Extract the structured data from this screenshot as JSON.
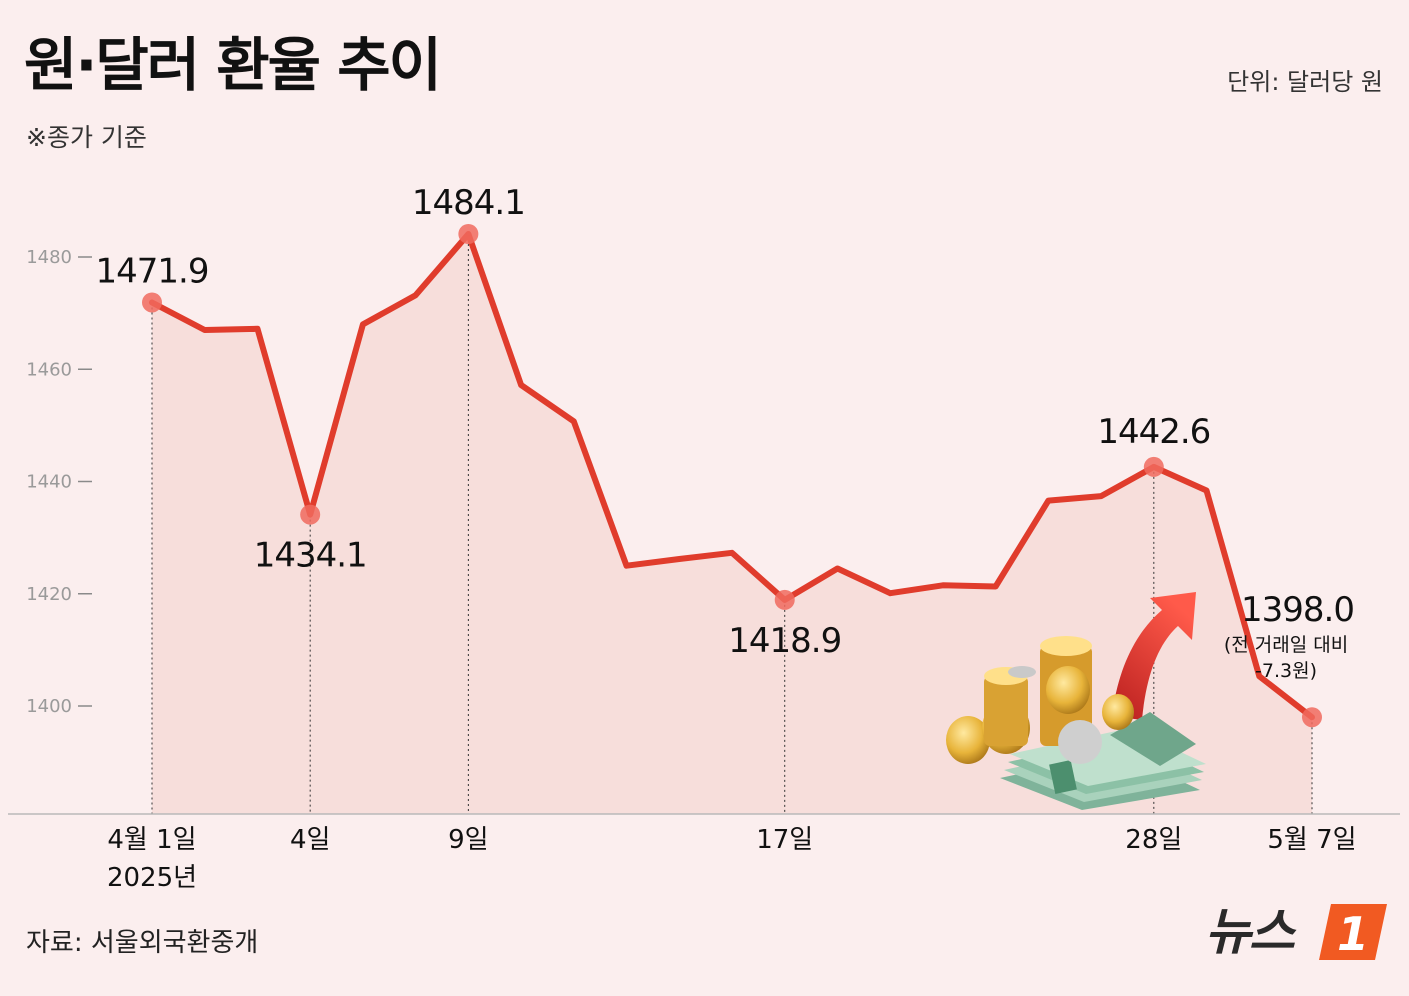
{
  "header": {
    "title": "원·달러 환율 추이",
    "subtitle": "※종가 기준",
    "unit": "단위: 달러당 원"
  },
  "footer": {
    "source": "자료: 서울외국환중개",
    "logo_text": "뉴스",
    "logo_badge": "1"
  },
  "colors": {
    "line": "#e03c2c",
    "marker": "#f06a5e",
    "area": "#f6d8d4",
    "background": "#fbeeee"
  },
  "chart_data": {
    "type": "line",
    "title": "원·달러 환율 추이",
    "ylim": [
      1378,
      1490
    ],
    "yticks": [
      1400,
      1420,
      1440,
      1460,
      1480
    ],
    "ytick_labels": [
      "1400",
      "1420",
      "1440",
      "1460",
      "1480"
    ],
    "grid": false,
    "series": [
      {
        "values": [
          1471.9,
          1467.0,
          1467.2,
          1434.1,
          1468.0,
          1473.2,
          1484.1,
          1457.2,
          1450.7,
          1425.0,
          1426.2,
          1427.3,
          1418.9,
          1424.5,
          1420.1,
          1421.5,
          1421.3,
          1436.6,
          1437.4,
          1442.6,
          1438.4,
          1405.3,
          1398.0
        ]
      }
    ],
    "x_labels": [
      {
        "index": 0,
        "label": "4월 1일",
        "sublabel": "2025년"
      },
      {
        "index": 3,
        "label": "4일"
      },
      {
        "index": 6,
        "label": "9일"
      },
      {
        "index": 12,
        "label": "17일"
      },
      {
        "index": 19,
        "label": "28일"
      },
      {
        "index": 22,
        "label": "5월 7일"
      }
    ],
    "highlights": [
      {
        "index": 0,
        "label": "1471.9"
      },
      {
        "index": 3,
        "label": "1434.1"
      },
      {
        "index": 6,
        "label": "1484.1"
      },
      {
        "index": 12,
        "label": "1418.9"
      },
      {
        "index": 19,
        "label": "1442.6"
      },
      {
        "index": 22,
        "label": "1398.0",
        "note": [
          "(전 거래일 대비",
          "-7.3원)"
        ]
      }
    ]
  }
}
